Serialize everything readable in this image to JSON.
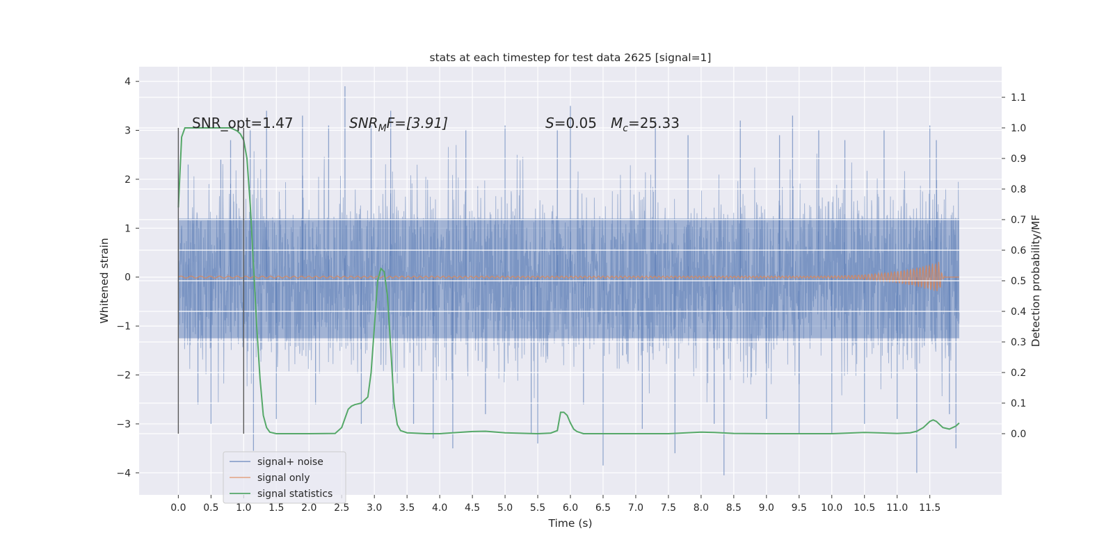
{
  "chart_data": {
    "type": "line",
    "title": "stats at each timestep for test data 2625 [signal=1]",
    "xlabel": "Time (s)",
    "ylabel": "Whitened strain",
    "y2label": "Detection probability/MF",
    "xlim": [
      -0.6,
      12.6
    ],
    "ylim": [
      -4.45,
      4.3
    ],
    "y2lim": [
      -0.2,
      1.2
    ],
    "grid": true,
    "x_ticks": [
      0.0,
      0.5,
      1.0,
      1.5,
      2.0,
      2.5,
      3.0,
      3.5,
      4.0,
      4.5,
      5.0,
      5.5,
      6.0,
      6.5,
      7.0,
      7.5,
      8.0,
      8.5,
      9.0,
      9.5,
      10.0,
      10.5,
      11.0,
      11.5
    ],
    "x_tick_labels": [
      "0.0",
      "0.5",
      "1.0",
      "1.5",
      "2.0",
      "2.5",
      "3.0",
      "3.5",
      "4.0",
      "4.5",
      "5.0",
      "5.5",
      "6.0",
      "6.5",
      "7.0",
      "7.5",
      "8.0",
      "8.5",
      "9.0",
      "9.5",
      "10.0",
      "10.5",
      "11.0",
      "11.5"
    ],
    "y_ticks": [
      4,
      3,
      2,
      1,
      0,
      -1,
      -2,
      -3,
      -4
    ],
    "y_tick_labels": [
      "4",
      "3",
      "2",
      "1",
      "0",
      "−1",
      "−2",
      "−3",
      "−4"
    ],
    "y2_ticks": [
      1.1,
      1.0,
      0.9,
      0.8,
      0.7,
      0.6,
      0.5,
      0.4,
      0.3,
      0.2,
      0.1,
      0.0
    ],
    "y2_tick_labels": [
      "1.1",
      "1.0",
      "0.9",
      "0.8",
      "0.7",
      "0.6",
      "0.5",
      "0.4",
      "0.3",
      "0.2",
      "0.1",
      "0.0"
    ],
    "legend_position": "lower-left",
    "legend": [
      "signal+ noise",
      "signal only",
      "signal statistics"
    ],
    "colors": {
      "signal_noise": "#4c72b0",
      "signal_only": "#dd8452",
      "signal_statistics": "#55a868",
      "markers": "#595959",
      "plot_bg": "#eaeaf2",
      "grid": "#ffffff"
    },
    "annotations": {
      "snr_opt": "SNR_opt=1.47",
      "snr_mf_sym": "SNR",
      "snr_mf_sub": "M",
      "snr_mf_rest": "F=[3.91]",
      "s_sym": "S",
      "s_val": "=0.05",
      "mc_sym": "M",
      "mc_sub": "c",
      "mc_val": "=25.33"
    },
    "markers_x": [
      0.0,
      1.0
    ],
    "marker_y_range": [
      -3.2,
      3.05
    ],
    "noise": {
      "t_start": 0.0,
      "t_end": 11.95,
      "band_lower": -1.25,
      "band_upper": 1.2,
      "spikes": [
        {
          "t": 0.15,
          "y": 2.3
        },
        {
          "t": 0.3,
          "y": -2.6
        },
        {
          "t": 0.5,
          "y": -3.0
        },
        {
          "t": 0.65,
          "y": 2.4
        },
        {
          "t": 0.8,
          "y": 2.8
        },
        {
          "t": 1.1,
          "y": 3.0
        },
        {
          "t": 1.15,
          "y": -3.55
        },
        {
          "t": 1.35,
          "y": 3.4
        },
        {
          "t": 1.5,
          "y": -2.9
        },
        {
          "t": 1.9,
          "y": 3.3
        },
        {
          "t": 2.1,
          "y": -2.6
        },
        {
          "t": 2.3,
          "y": 3.1
        },
        {
          "t": 2.55,
          "y": 3.9
        },
        {
          "t": 2.8,
          "y": -3.0
        },
        {
          "t": 2.95,
          "y": 3.1
        },
        {
          "t": 3.25,
          "y": 3.4
        },
        {
          "t": 3.6,
          "y": -3.0
        },
        {
          "t": 3.9,
          "y": -3.3
        },
        {
          "t": 4.2,
          "y": -3.5
        },
        {
          "t": 4.4,
          "y": 3.0
        },
        {
          "t": 4.7,
          "y": -2.8
        },
        {
          "t": 5.0,
          "y": 3.1
        },
        {
          "t": 5.4,
          "y": -3.2
        },
        {
          "t": 5.5,
          "y": -3.4
        },
        {
          "t": 5.8,
          "y": 3.0
        },
        {
          "t": 6.0,
          "y": 3.5
        },
        {
          "t": 6.2,
          "y": -2.6
        },
        {
          "t": 6.5,
          "y": -3.85
        },
        {
          "t": 6.8,
          "y": -1.6
        },
        {
          "t": 7.1,
          "y": -3.1
        },
        {
          "t": 7.3,
          "y": 3.2
        },
        {
          "t": 7.6,
          "y": -3.6
        },
        {
          "t": 7.8,
          "y": 2.9
        },
        {
          "t": 8.2,
          "y": -3.0
        },
        {
          "t": 8.35,
          "y": -4.05
        },
        {
          "t": 8.6,
          "y": 3.2
        },
        {
          "t": 9.0,
          "y": -2.9
        },
        {
          "t": 9.2,
          "y": 2.9
        },
        {
          "t": 9.4,
          "y": 3.3
        },
        {
          "t": 9.5,
          "y": -3.2
        },
        {
          "t": 9.8,
          "y": 3.0
        },
        {
          "t": 10.0,
          "y": -3.2
        },
        {
          "t": 10.2,
          "y": 2.8
        },
        {
          "t": 10.5,
          "y": -3.0
        },
        {
          "t": 10.8,
          "y": 3.0
        },
        {
          "t": 11.0,
          "y": -2.9
        },
        {
          "t": 11.3,
          "y": -4.0
        },
        {
          "t": 11.5,
          "y": 3.1
        },
        {
          "t": 11.6,
          "y": 2.8
        },
        {
          "t": 11.8,
          "y": -2.8
        },
        {
          "t": 11.9,
          "y": -3.5
        }
      ]
    },
    "signal_only": {
      "t_start": 0.0,
      "t_end": 11.95,
      "peak_t": 11.65,
      "peak_amplitude": 0.32
    },
    "signal_statistics": {
      "x": [
        0.0,
        0.05,
        0.1,
        0.15,
        0.2,
        0.3,
        0.5,
        0.7,
        0.8,
        0.9,
        0.95,
        1.0,
        1.05,
        1.1,
        1.15,
        1.2,
        1.25,
        1.3,
        1.35,
        1.4,
        1.5,
        1.6,
        2.0,
        2.4,
        2.5,
        2.55,
        2.6,
        2.65,
        2.7,
        2.8,
        2.9,
        2.95,
        3.0,
        3.05,
        3.1,
        3.15,
        3.2,
        3.25,
        3.3,
        3.35,
        3.4,
        3.5,
        3.6,
        3.8,
        4.0,
        4.5,
        4.7,
        5.0,
        5.5,
        5.7,
        5.8,
        5.85,
        5.9,
        5.95,
        6.0,
        6.05,
        6.1,
        6.2,
        6.5,
        7.0,
        7.5,
        8.0,
        8.2,
        8.5,
        9.0,
        9.5,
        10.0,
        10.5,
        11.0,
        11.2,
        11.3,
        11.4,
        11.5,
        11.55,
        11.6,
        11.65,
        11.7,
        11.8,
        11.9,
        11.95
      ],
      "y": [
        0.74,
        0.97,
        1.0,
        1.0,
        1.0,
        1.0,
        1.0,
        1.0,
        1.0,
        0.99,
        0.98,
        0.96,
        0.9,
        0.75,
        0.55,
        0.35,
        0.18,
        0.06,
        0.02,
        0.005,
        0.0,
        0.0,
        0.0,
        0.001,
        0.02,
        0.05,
        0.08,
        0.09,
        0.095,
        0.1,
        0.12,
        0.2,
        0.35,
        0.5,
        0.54,
        0.53,
        0.45,
        0.28,
        0.1,
        0.03,
        0.01,
        0.003,
        0.002,
        0.0,
        0.0,
        0.007,
        0.008,
        0.003,
        0.0,
        0.002,
        0.01,
        0.07,
        0.07,
        0.06,
        0.035,
        0.015,
        0.007,
        0.0,
        0.0,
        0.0,
        0.0,
        0.005,
        0.004,
        0.001,
        0.0,
        0.0,
        0.0,
        0.004,
        0.001,
        0.003,
        0.008,
        0.02,
        0.04,
        0.045,
        0.04,
        0.03,
        0.02,
        0.015,
        0.025,
        0.035
      ]
    }
  }
}
